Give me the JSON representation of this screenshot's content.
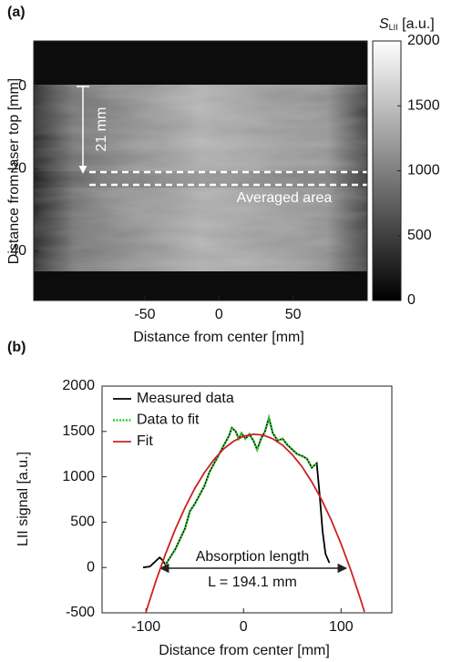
{
  "chart_data": [
    {
      "type": "image",
      "label": "(a)",
      "x_label": "Distance from center [mm]",
      "y_label": "Distance from laser top [mm]",
      "xlim": [
        -125,
        100
      ],
      "xticks": [
        -50,
        0,
        50
      ],
      "ylim": [
        52,
        -11
      ],
      "yticks": [
        0,
        20,
        40
      ],
      "colorbar_label": [
        "S",
        "LII",
        " [a.u.]"
      ],
      "clim": [
        0,
        2000
      ],
      "colorbar_ticks": [
        0,
        500,
        1000,
        1500,
        2000
      ],
      "annotations": [
        "21 mm",
        "Averaged area"
      ]
    },
    {
      "type": "line",
      "label": "(b)",
      "x_label": "Distance from center [mm]",
      "y_label": "LII signal [a.u.]",
      "xlim": [
        -145,
        152
      ],
      "xticks": [
        -100,
        0,
        100
      ],
      "ylim": [
        -500,
        2000
      ],
      "yticks": [
        -500,
        0,
        500,
        1000,
        1500,
        2000
      ],
      "legend": "upper left",
      "series": [
        {
          "name": "Measured data",
          "color": "#000000",
          "line_style": "solid",
          "x": [
            -103,
            -96,
            -90,
            -86,
            -83,
            -80,
            -70,
            -60,
            -55,
            -50,
            -45,
            -40,
            -35,
            -30,
            -25,
            -20,
            -15,
            -12,
            -8,
            -5,
            -2,
            2,
            6,
            10,
            14,
            18,
            22,
            26,
            30,
            35,
            40,
            45,
            50,
            55,
            60,
            65,
            70,
            75,
            78,
            81,
            84,
            88
          ],
          "values": [
            0,
            10,
            70,
            110,
            80,
            30,
            200,
            430,
            620,
            700,
            800,
            900,
            1050,
            1150,
            1250,
            1350,
            1450,
            1540,
            1500,
            1420,
            1480,
            1420,
            1470,
            1400,
            1300,
            1420,
            1500,
            1650,
            1480,
            1400,
            1420,
            1350,
            1300,
            1250,
            1230,
            1200,
            1100,
            1150,
            800,
            400,
            150,
            50
          ]
        },
        {
          "name": "Data to fit",
          "color": "#33cc33",
          "line_style": "dotted",
          "x": [
            -80,
            -70,
            -60,
            -55,
            -50,
            -45,
            -40,
            -35,
            -30,
            -25,
            -20,
            -15,
            -12,
            -8,
            -5,
            -2,
            2,
            6,
            10,
            14,
            18,
            22,
            26,
            30,
            35,
            40,
            45,
            50,
            55,
            60,
            65,
            70,
            75
          ],
          "values": [
            30,
            200,
            430,
            620,
            700,
            800,
            900,
            1050,
            1150,
            1250,
            1350,
            1450,
            1540,
            1500,
            1420,
            1480,
            1420,
            1470,
            1400,
            1300,
            1420,
            1500,
            1650,
            1480,
            1400,
            1420,
            1350,
            1300,
            1250,
            1230,
            1200,
            1100,
            1150
          ]
        },
        {
          "name": "Fit",
          "color": "#cc2222",
          "line_style": "solid",
          "x": [
            -100,
            -90,
            -80,
            -70,
            -60,
            -50,
            -40,
            -30,
            -20,
            -10,
            0,
            10,
            20,
            30,
            40,
            50,
            60,
            70,
            80,
            90,
            100,
            110,
            120,
            124
          ],
          "values": [
            -490,
            -155,
            148,
            420,
            660,
            870,
            1047,
            1194,
            1310,
            1394,
            1447,
            1469,
            1460,
            1419,
            1348,
            1244,
            1110,
            944,
            748,
            520,
            260,
            -30,
            -352,
            -490
          ]
        }
      ],
      "annotations": [
        "Absorption length",
        "L = 194.1 mm"
      ]
    }
  ]
}
